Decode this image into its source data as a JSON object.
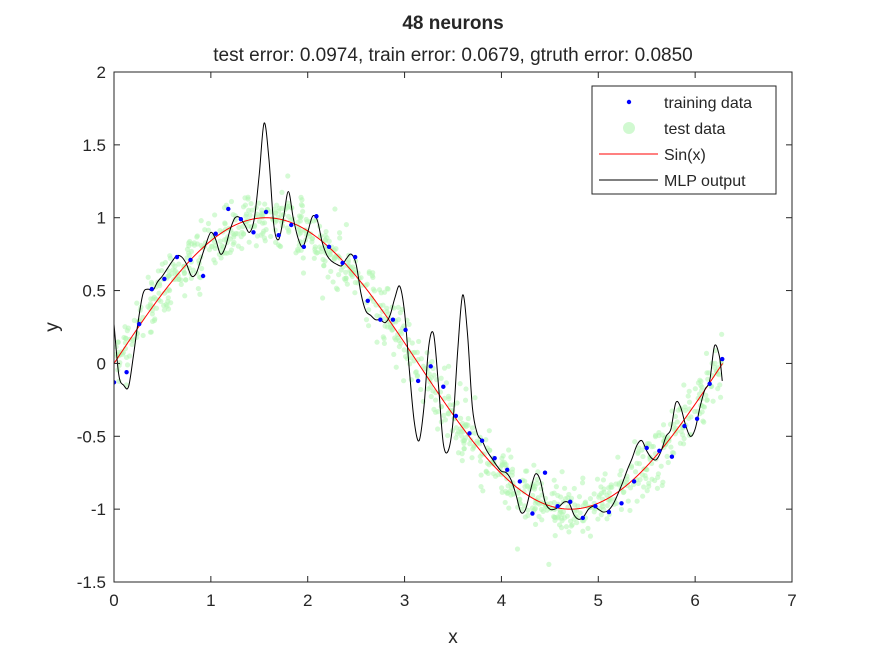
{
  "chart_data": {
    "type": "line",
    "title": "48 neurons",
    "subtitle": "test error: 0.0974, train error: 0.0679, gtruth error: 0.0850",
    "xlabel": "x",
    "ylabel": "y",
    "xlim": [
      0,
      7
    ],
    "ylim": [
      -1.5,
      2
    ],
    "x_ticks": [
      0,
      1,
      2,
      3,
      4,
      5,
      6,
      7
    ],
    "x_tick_labels": [
      "0",
      "1",
      "2",
      "3",
      "4",
      "5",
      "6",
      "7"
    ],
    "y_ticks": [
      -1.5,
      -1,
      -0.5,
      0,
      0.5,
      1,
      1.5,
      2
    ],
    "y_tick_labels": [
      "-1.5",
      "-1",
      "-0.5",
      "0",
      "0.5",
      "1",
      "1.5",
      "2"
    ],
    "grid": false,
    "legend_position": "top-right",
    "colors": {
      "training": "#0000ff",
      "test": "#b3f5b3",
      "sin": "#ff0000",
      "mlp": "#000000",
      "axis": "#262626"
    },
    "series": [
      {
        "name": "training data",
        "kind": "scatter",
        "x": [
          0.0,
          0.13,
          0.26,
          0.39,
          0.52,
          0.65,
          0.79,
          0.92,
          1.05,
          1.18,
          1.31,
          1.44,
          1.57,
          1.7,
          1.83,
          1.96,
          2.09,
          2.22,
          2.36,
          2.49,
          2.62,
          2.75,
          2.88,
          3.01,
          3.14,
          3.27,
          3.4,
          3.53,
          3.67,
          3.8,
          3.93,
          4.06,
          4.19,
          4.32,
          4.45,
          4.58,
          4.71,
          4.84,
          4.97,
          5.11,
          5.24,
          5.37,
          5.5,
          5.63,
          5.76,
          5.89,
          6.02,
          6.15,
          6.28
        ],
        "y": [
          -0.13,
          -0.06,
          0.27,
          0.51,
          0.58,
          0.73,
          0.71,
          0.6,
          0.89,
          1.06,
          0.99,
          0.9,
          1.04,
          0.88,
          0.95,
          0.8,
          1.01,
          0.8,
          0.69,
          0.73,
          0.43,
          0.3,
          0.3,
          0.23,
          -0.12,
          -0.02,
          -0.16,
          -0.36,
          -0.48,
          -0.53,
          -0.65,
          -0.73,
          -0.81,
          -1.03,
          -0.75,
          -0.98,
          -0.95,
          -1.06,
          -0.98,
          -1.02,
          -0.96,
          -0.81,
          -0.58,
          -0.6,
          -0.64,
          -0.43,
          -0.38,
          -0.14,
          0.03
        ]
      },
      {
        "name": "test data",
        "kind": "scatter",
        "function": "sin",
        "x_range": [
          0,
          6.28
        ],
        "noise": 0.1,
        "count": 1000
      },
      {
        "name": "Sin(x)",
        "kind": "line",
        "function": "sin",
        "x_range": [
          0,
          6.2832
        ]
      },
      {
        "name": "MLP output",
        "kind": "line",
        "x": [
          0.0,
          0.05,
          0.1,
          0.15,
          0.2,
          0.25,
          0.3,
          0.35,
          0.4,
          0.45,
          0.5,
          0.55,
          0.6,
          0.65,
          0.7,
          0.75,
          0.8,
          0.85,
          0.9,
          0.95,
          1.0,
          1.05,
          1.1,
          1.15,
          1.2,
          1.25,
          1.3,
          1.35,
          1.4,
          1.45,
          1.5,
          1.55,
          1.6,
          1.65,
          1.7,
          1.75,
          1.8,
          1.85,
          1.9,
          1.95,
          2.0,
          2.05,
          2.1,
          2.15,
          2.2,
          2.25,
          2.3,
          2.35,
          2.4,
          2.45,
          2.5,
          2.55,
          2.6,
          2.65,
          2.7,
          2.75,
          2.8,
          2.85,
          2.9,
          2.95,
          3.0,
          3.05,
          3.1,
          3.15,
          3.2,
          3.25,
          3.3,
          3.35,
          3.4,
          3.45,
          3.5,
          3.55,
          3.6,
          3.65,
          3.7,
          3.75,
          3.8,
          3.85,
          3.9,
          3.95,
          4.0,
          4.05,
          4.1,
          4.15,
          4.2,
          4.25,
          4.3,
          4.35,
          4.4,
          4.45,
          4.5,
          4.55,
          4.6,
          4.65,
          4.7,
          4.75,
          4.8,
          4.85,
          4.9,
          4.95,
          5.0,
          5.05,
          5.1,
          5.15,
          5.2,
          5.25,
          5.3,
          5.35,
          5.4,
          5.45,
          5.5,
          5.55,
          5.6,
          5.65,
          5.7,
          5.75,
          5.8,
          5.85,
          5.9,
          5.95,
          6.0,
          6.05,
          6.1,
          6.15,
          6.2,
          6.25,
          6.28
        ],
        "y": [
          0.27,
          -0.08,
          -0.15,
          -0.16,
          0.05,
          0.29,
          0.48,
          0.51,
          0.5,
          0.56,
          0.6,
          0.65,
          0.7,
          0.74,
          0.73,
          0.68,
          0.6,
          0.62,
          0.72,
          0.82,
          0.9,
          0.85,
          0.75,
          0.8,
          0.92,
          1.0,
          1.0,
          0.95,
          0.9,
          1.0,
          1.3,
          1.65,
          1.4,
          0.95,
          0.85,
          1.0,
          1.18,
          1.0,
          0.86,
          0.8,
          0.9,
          1.01,
          0.98,
          0.83,
          0.74,
          0.7,
          0.68,
          0.67,
          0.72,
          0.75,
          0.68,
          0.48,
          0.36,
          0.33,
          0.3,
          0.3,
          0.28,
          0.33,
          0.45,
          0.53,
          0.35,
          -0.05,
          -0.4,
          -0.53,
          -0.3,
          0.12,
          0.2,
          -0.15,
          -0.55,
          -0.6,
          -0.4,
          0.1,
          0.47,
          0.2,
          -0.3,
          -0.48,
          -0.53,
          -0.6,
          -0.65,
          -0.7,
          -0.74,
          -0.75,
          -0.8,
          -0.9,
          -1.02,
          -1.0,
          -0.87,
          -0.76,
          -0.8,
          -0.95,
          -1.0,
          -1.0,
          -0.98,
          -0.95,
          -0.96,
          -1.04,
          -1.07,
          -1.05,
          -1.0,
          -0.98,
          -1.0,
          -1.02,
          -1.01,
          -0.97,
          -0.9,
          -0.82,
          -0.73,
          -0.65,
          -0.56,
          -0.53,
          -0.6,
          -0.65,
          -0.66,
          -0.6,
          -0.5,
          -0.45,
          -0.27,
          -0.3,
          -0.42,
          -0.5,
          -0.45,
          -0.3,
          -0.18,
          -0.12,
          0.12,
          0.05,
          -0.12
        ]
      }
    ]
  }
}
